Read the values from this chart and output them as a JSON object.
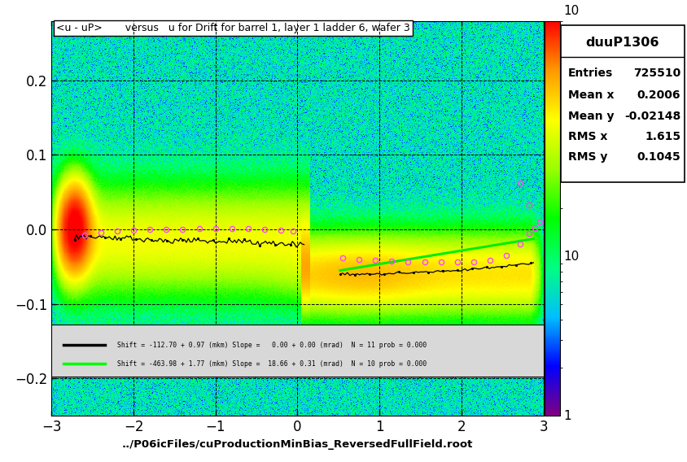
{
  "title": "<u - uP>       versus   u for Drift for barrel 1, layer 1 ladder 6, wafer 3",
  "xlabel": "../P06icFiles/cuProductionMinBias_ReversedFullField.root",
  "hist_name": "duuP1306",
  "entries": "725510",
  "mean_x": "0.2006",
  "mean_y": "-0.02148",
  "rms_x": "1.615",
  "rms_y": "0.1045",
  "xlim": [
    -3.0,
    3.0
  ],
  "ylim": [
    -0.25,
    0.28
  ],
  "legend_line1": "Shift = -112.70 + 0.97 (mkm) Slope =   0.00 + 0.00 (mrad)  N = 11 prob = 0.000",
  "legend_line2": "Shift = -463.98 + 1.77 (mkm) Slope =  18.66 + 0.31 (mrad)  N = 10 prob = 0.000"
}
